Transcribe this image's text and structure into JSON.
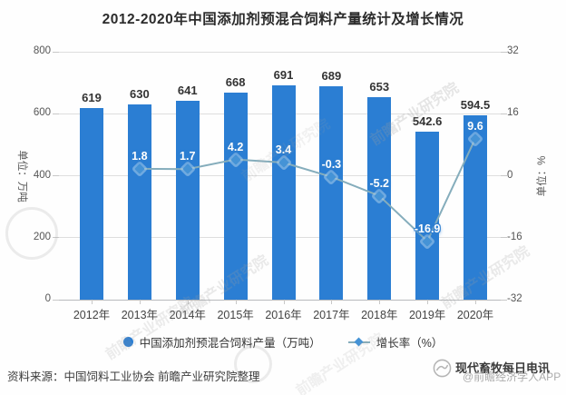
{
  "title": "2012-2020年中国添加剂预混合饲料产量统计及增长情况",
  "chart_data": {
    "type": "bar",
    "categories": [
      "2012年",
      "2013年",
      "2014年",
      "2015年",
      "2016年",
      "2017年",
      "2018年",
      "2019年",
      "2020年"
    ],
    "series": [
      {
        "name": "中国添加剂预混合饲料产量（万吨）",
        "type": "bar",
        "yaxis": "left",
        "values": [
          619,
          630,
          641,
          668,
          691,
          689,
          653,
          542.6,
          594.5
        ]
      },
      {
        "name": "增长率（%）",
        "type": "line",
        "yaxis": "right",
        "values": [
          null,
          1.8,
          1.7,
          4.2,
          3.4,
          -0.3,
          -5.2,
          -16.9,
          9.6
        ]
      }
    ],
    "left_axis": {
      "label": "单位：万吨",
      "range": [
        0,
        800
      ],
      "ticks": [
        800,
        600,
        400,
        200,
        0
      ]
    },
    "right_axis": {
      "label": "单位：%",
      "range": [
        -32,
        32
      ],
      "ticks": [
        32,
        16,
        0,
        -16,
        -32
      ]
    },
    "legend_position": "bottom",
    "grid": "horizontal-solid"
  },
  "colors": {
    "bar": "#2b7ed3",
    "line": "#85adbc",
    "marker": "#4593d6",
    "marker_halo": "#a9cdeb",
    "grid": "#dedede",
    "axis_line": "#b8babd",
    "bar_label": "#333333",
    "point_label_text": "#ffffff",
    "point_label_outline": "#2f7fd0",
    "title": "#2b2b2b",
    "watermark": "#a8a8a8"
  },
  "source_note": "资料来源：中国饲料工业协会 前瞻产业研究院整理",
  "watermark": {
    "text": "前瞻产业研究院"
  },
  "branding": {
    "outlet": "现代畜牧每日电讯",
    "app": "@前瞻经济学人APP"
  }
}
